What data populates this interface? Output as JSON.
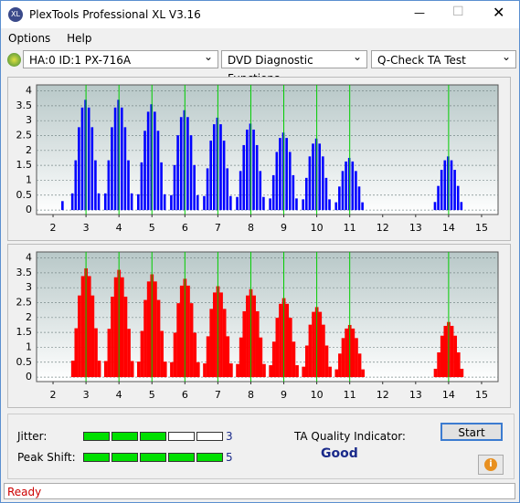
{
  "window": {
    "title": "PlexTools Professional XL V3.16",
    "menu": [
      "Options",
      "Help"
    ],
    "device": "HA:0 ID:1  PX-716A",
    "function": "DVD Diagnostic Functions",
    "test": "Q-Check TA Test",
    "status": "Ready"
  },
  "quality": {
    "jitter_label": "Jitter:",
    "jitter": 3,
    "peak_label": "Peak Shift:",
    "peak": 5,
    "indicator_label": "TA Quality Indicator:",
    "result": "Good",
    "button": "Start"
  },
  "chart_data": [
    {
      "type": "bar",
      "color": "#0000ff",
      "marker_color": "#00cc00",
      "markers": [
        3,
        4,
        5,
        6,
        7,
        8,
        9,
        10,
        11,
        14
      ],
      "xlim": [
        1.5,
        15.5
      ],
      "xticks": [
        2,
        3,
        4,
        5,
        6,
        7,
        8,
        9,
        10,
        11,
        12,
        13,
        14,
        15
      ],
      "ylim": [
        -0.15,
        4.2
      ],
      "yticks": [
        0,
        0.5,
        1,
        1.5,
        2,
        2.5,
        3,
        3.5,
        4
      ],
      "grid": true,
      "x": [
        2.3,
        2.6,
        2.7,
        2.8,
        2.9,
        3,
        3.1,
        3.2,
        3.3,
        3.4,
        3.6,
        3.7,
        3.8,
        3.9,
        4,
        4.1,
        4.2,
        4.3,
        4.4,
        4.6,
        4.7,
        4.8,
        4.9,
        5,
        5.1,
        5.2,
        5.3,
        5.4,
        5.6,
        5.7,
        5.8,
        5.9,
        6,
        6.1,
        6.2,
        6.3,
        6.4,
        6.6,
        6.7,
        6.8,
        6.9,
        7,
        7.1,
        7.2,
        7.3,
        7.4,
        7.6,
        7.7,
        7.8,
        7.9,
        8,
        8.1,
        8.2,
        8.3,
        8.4,
        8.6,
        8.7,
        8.8,
        8.9,
        9,
        9.1,
        9.2,
        9.3,
        9.4,
        9.6,
        9.7,
        9.8,
        9.9,
        10,
        10.1,
        10.2,
        10.3,
        10.4,
        10.6,
        10.7,
        10.8,
        10.9,
        11,
        11.1,
        11.2,
        11.3,
        11.4,
        13.6,
        13.7,
        13.8,
        13.9,
        14,
        14.1,
        14.2,
        14.3,
        14.4
      ],
      "values": [
        0.3,
        0.56,
        1.67,
        2.78,
        3.44,
        3.7,
        3.44,
        2.78,
        1.67,
        0.56,
        0.56,
        1.67,
        2.78,
        3.44,
        3.7,
        3.44,
        2.78,
        1.67,
        0.56,
        0.53,
        1.6,
        2.66,
        3.3,
        3.55,
        3.3,
        2.66,
        1.6,
        0.53,
        0.5,
        1.51,
        2.51,
        3.12,
        3.35,
        3.12,
        2.51,
        1.51,
        0.5,
        0.47,
        1.4,
        2.33,
        2.88,
        3.1,
        2.88,
        2.33,
        1.4,
        0.47,
        0.44,
        1.31,
        2.18,
        2.7,
        2.9,
        2.7,
        2.18,
        1.31,
        0.44,
        0.39,
        1.17,
        1.95,
        2.42,
        2.6,
        2.42,
        1.95,
        1.17,
        0.39,
        0.36,
        1.08,
        1.8,
        2.23,
        2.4,
        2.23,
        1.8,
        1.08,
        0.36,
        0.26,
        0.79,
        1.31,
        1.63,
        1.75,
        1.63,
        1.31,
        0.79,
        0.26,
        0.27,
        0.81,
        1.35,
        1.67,
        1.8,
        1.67,
        1.35,
        0.81,
        0.27
      ]
    },
    {
      "type": "bar",
      "color": "#ff0000",
      "marker_color": "#00cc00",
      "markers": [
        3,
        4,
        5,
        6,
        7,
        8,
        9,
        10,
        11,
        14
      ],
      "xlim": [
        1.5,
        15.5
      ],
      "xticks": [
        2,
        3,
        4,
        5,
        6,
        7,
        8,
        9,
        10,
        11,
        12,
        13,
        14,
        15
      ],
      "ylim": [
        -0.15,
        4.2
      ],
      "yticks": [
        0,
        0.5,
        1,
        1.5,
        2,
        2.5,
        3,
        3.5,
        4
      ],
      "grid": true,
      "x": [
        2.6,
        2.7,
        2.8,
        2.9,
        3,
        3.1,
        3.2,
        3.3,
        3.4,
        3.6,
        3.7,
        3.8,
        3.9,
        4,
        4.1,
        4.2,
        4.3,
        4.4,
        4.6,
        4.7,
        4.8,
        4.9,
        5,
        5.1,
        5.2,
        5.3,
        5.4,
        5.6,
        5.7,
        5.8,
        5.9,
        6,
        6.1,
        6.2,
        6.3,
        6.4,
        6.6,
        6.7,
        6.8,
        6.9,
        7,
        7.1,
        7.2,
        7.3,
        7.4,
        7.6,
        7.7,
        7.8,
        7.9,
        8,
        8.1,
        8.2,
        8.3,
        8.4,
        8.6,
        8.7,
        8.8,
        8.9,
        9,
        9.1,
        9.2,
        9.3,
        9.4,
        9.6,
        9.7,
        9.8,
        9.9,
        10,
        10.1,
        10.2,
        10.3,
        10.4,
        10.6,
        10.7,
        10.8,
        10.9,
        11,
        11.1,
        11.2,
        11.3,
        11.4,
        13.6,
        13.7,
        13.8,
        13.9,
        14,
        14.1,
        14.2,
        14.3,
        14.4
      ],
      "values": [
        0.55,
        1.64,
        2.74,
        3.39,
        3.65,
        3.39,
        2.74,
        1.64,
        0.55,
        0.54,
        1.62,
        2.7,
        3.35,
        3.6,
        3.35,
        2.7,
        1.62,
        0.54,
        0.52,
        1.55,
        2.59,
        3.21,
        3.45,
        3.21,
        2.59,
        1.55,
        0.52,
        0.5,
        1.49,
        2.48,
        3.07,
        3.3,
        3.07,
        2.48,
        1.49,
        0.5,
        0.46,
        1.37,
        2.29,
        2.84,
        3.05,
        2.84,
        2.29,
        1.37,
        0.46,
        0.44,
        1.33,
        2.21,
        2.74,
        2.95,
        2.74,
        2.21,
        1.33,
        0.44,
        0.4,
        1.19,
        1.99,
        2.46,
        2.65,
        2.46,
        1.99,
        1.19,
        0.4,
        0.35,
        1.06,
        1.76,
        2.19,
        2.35,
        2.19,
        1.76,
        1.06,
        0.35,
        0.26,
        0.79,
        1.31,
        1.63,
        1.75,
        1.63,
        1.31,
        0.79,
        0.26,
        0.28,
        0.83,
        1.39,
        1.72,
        1.85,
        1.72,
        1.39,
        0.83,
        0.28
      ]
    }
  ]
}
